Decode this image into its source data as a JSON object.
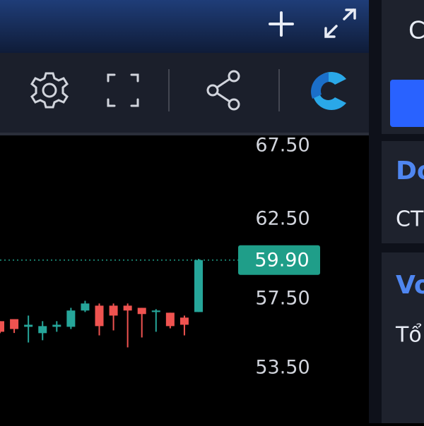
{
  "chart_data": {
    "type": "candlestick",
    "categories": [
      null,
      null,
      null,
      null,
      null,
      null,
      null,
      null,
      null,
      null,
      null,
      null,
      null,
      null,
      null
    ],
    "open": [
      56.19,
      56.31,
      55.86,
      55.49,
      55.86,
      55.86,
      56.82,
      57.11,
      57.11,
      57.11,
      56.98,
      56.73,
      56.69,
      56.4,
      56.73
    ],
    "high": [
      56.19,
      56.31,
      56.52,
      56.19,
      56.19,
      56.98,
      57.4,
      57.24,
      57.24,
      57.24,
      56.98,
      56.9,
      56.69,
      56.52,
      59.97
    ],
    "low": [
      55.49,
      55.5,
      54.95,
      55.08,
      55.57,
      55.73,
      56.73,
      55.36,
      55.65,
      54.67,
      55.24,
      55.57,
      55.77,
      55.36,
      56.73
    ],
    "close": [
      55.57,
      55.73,
      55.98,
      55.9,
      55.98,
      56.82,
      57.24,
      55.9,
      56.52,
      56.82,
      56.61,
      56.82,
      55.9,
      55.98,
      59.9
    ],
    "up_color": "#26a69a",
    "down_color": "#ef5350",
    "ylim": [
      50.5,
      68.35
    ],
    "log_scale": true,
    "yticks": [
      {
        "value": 67.5,
        "label": "67.50"
      },
      {
        "value": 62.5,
        "label": "62.50"
      },
      {
        "value": 57.5,
        "label": "57.50"
      },
      {
        "value": 53.5,
        "label": "53.50"
      }
    ],
    "last_price": {
      "value": 59.9,
      "label": "59.90"
    },
    "last_price_color": "#1f9e89"
  },
  "side_panel": {
    "top": "C",
    "heading_1": "Do",
    "text_1": "CT",
    "heading_2": "Vo",
    "text_2": "Tổ"
  }
}
